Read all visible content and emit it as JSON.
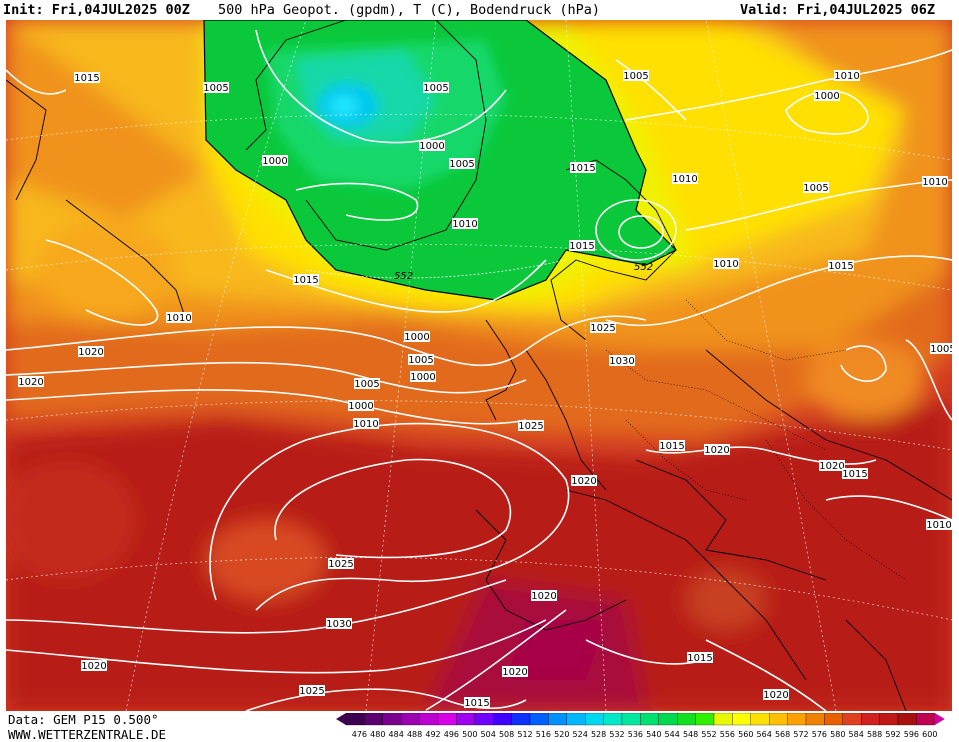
{
  "header": {
    "init": "Init: Fri,04JUL2025 00Z",
    "title": "500 hPa Geopot. (gpdm), T (C), Bodendruck (hPa)",
    "valid": "Valid: Fri,04JUL2025 06Z"
  },
  "footer": {
    "data_source": "Data: GEM P15 0.500°",
    "site": "WWW.WETTERZENTRALE.DE"
  },
  "legend": {
    "levels": [
      "476",
      "480",
      "484",
      "488",
      "492",
      "496",
      "500",
      "504",
      "508",
      "512",
      "516",
      "520",
      "524",
      "528",
      "532",
      "536",
      "540",
      "544",
      "548",
      "552",
      "556",
      "560",
      "564",
      "568",
      "572",
      "576",
      "580",
      "584",
      "588",
      "592",
      "596",
      "600"
    ],
    "colors": [
      "#3d0050",
      "#5a0070",
      "#7a0090",
      "#9a00b0",
      "#bb00d0",
      "#d800e8",
      "#a000f0",
      "#7000ff",
      "#4000ff",
      "#1030ff",
      "#0060ff",
      "#0090ff",
      "#00b8ff",
      "#00d8f0",
      "#00e8c8",
      "#00e8a0",
      "#00e070",
      "#00d850",
      "#10e020",
      "#30f000",
      "#e8f800",
      "#ffff00",
      "#ffe000",
      "#ffc000",
      "#ffa000",
      "#f08000",
      "#e86000",
      "#e04020",
      "#d02020",
      "#c01818",
      "#a81010",
      "#c00050"
    ]
  },
  "map": {
    "geopotential_label": "552",
    "isobar_labels": [
      "1005",
      "1000",
      "1005",
      "1000",
      "1005",
      "1010",
      "1015",
      "1010",
      "1000",
      "1005",
      "1000",
      "1005",
      "1000",
      "1010",
      "1015",
      "1015",
      "1010",
      "1010",
      "1000",
      "1005",
      "1010",
      "1015",
      "1020",
      "1020",
      "1025",
      "1030",
      "1025",
      "1020",
      "1015",
      "1020",
      "1020",
      "1015",
      "1010",
      "1005",
      "1010",
      "1025",
      "1030",
      "1020",
      "1025",
      "1020",
      "1020",
      "1015",
      "1015",
      "1020",
      "1005",
      "1015"
    ]
  }
}
